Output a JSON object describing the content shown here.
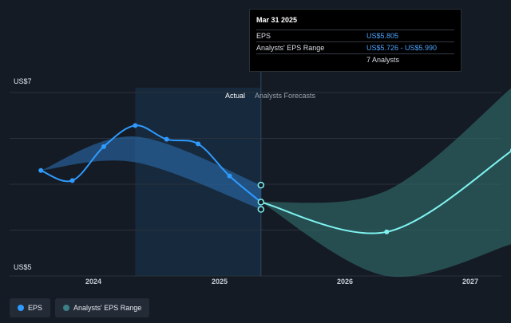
{
  "tooltip": {
    "date": "Mar 31 2025",
    "rows": [
      {
        "label": "EPS",
        "value": "US$5.805"
      },
      {
        "label": "Analysts' EPS Range",
        "value": "US$5.726 - US$5.990"
      },
      {
        "label": "",
        "value": "7 Analysts"
      }
    ]
  },
  "regions": {
    "actual": "Actual",
    "forecast": "Analysts Forecasts"
  },
  "legend": [
    {
      "label": "EPS",
      "color": "#2f9bff"
    },
    {
      "label": "Analysts' EPS Range",
      "color": "#3d7f86"
    }
  ],
  "colors": {
    "eps": "#2f9bff",
    "forecast": "#7ff3f0",
    "band_past": "#2a6cae",
    "band_future": "#2f6a6a",
    "actual_shade": "#1a3550",
    "background": "#151b24"
  },
  "chart_data": {
    "type": "line",
    "y_unit": "US$",
    "ylim": [
      5,
      7
    ],
    "y_labels": [
      {
        "value": 7,
        "text": "US$7"
      },
      {
        "value": 5,
        "text": "US$5"
      }
    ],
    "x_ticks": [
      {
        "year": 2024,
        "text": "2024"
      },
      {
        "year": 2025,
        "text": "2025"
      },
      {
        "year": 2026,
        "text": "2026"
      },
      {
        "year": 2027,
        "text": "2027"
      }
    ],
    "xlim": [
      2023.5,
      2027.25
    ],
    "actual_start": 2024.25,
    "divider": 2025.25,
    "grid": true,
    "series": [
      {
        "name": "EPS",
        "x": [
          2023.5,
          2023.75,
          2024.0,
          2024.25,
          2024.5,
          2024.75,
          2025.0,
          2025.25
        ],
        "y": [
          6.15,
          6.04,
          6.41,
          6.64,
          6.49,
          6.44,
          6.09,
          5.805
        ]
      },
      {
        "name": "EPS Forecast",
        "x": [
          2025.25,
          2026.25,
          2027.25
        ],
        "y": [
          5.805,
          5.48,
          6.37
        ]
      }
    ],
    "range_past": {
      "x": [
        2023.5,
        2024.25,
        2025.25
      ],
      "low": [
        6.15,
        6.24,
        5.726
      ],
      "high": [
        6.15,
        6.52,
        5.99
      ]
    },
    "range_future": {
      "x": [
        2025.25,
        2026.25,
        2027.25
      ],
      "low": [
        5.805,
        5.0,
        5.35
      ],
      "high": [
        5.805,
        5.93,
        7.06
      ]
    }
  }
}
